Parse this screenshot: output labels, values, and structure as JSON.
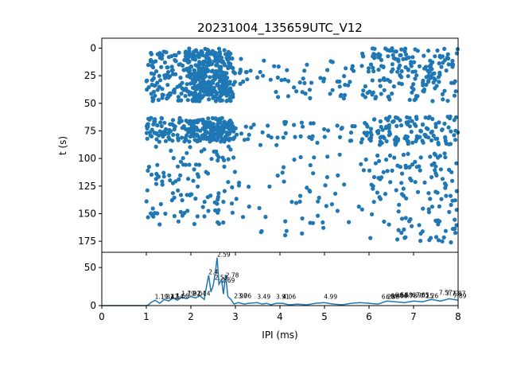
{
  "chart_data": [
    {
      "type": "scatter",
      "title": "20231004_135659UTC_V12",
      "xlabel": "",
      "ylabel": "t (s)",
      "xlim": [
        0,
        8
      ],
      "ylim": [
        185,
        -9
      ],
      "y_inverted": true,
      "yticks": [
        0,
        25,
        50,
        75,
        100,
        125,
        150,
        175
      ],
      "xticks": [
        0,
        1,
        2,
        3,
        4,
        5,
        6,
        7,
        8
      ],
      "x_tick_labels_shown": false,
      "color": "#1f77b4",
      "note_density": "dense points; bands near t 0-45 and 65-85 across x 1-8, sparser elsewhere",
      "clusters": [
        {
          "x_range": [
            1.0,
            3.0
          ],
          "t_range": [
            3,
            48
          ],
          "count": 260
        },
        {
          "x_range": [
            1.9,
            2.9
          ],
          "t_range": [
            0,
            48
          ],
          "count": 180
        },
        {
          "x_range": [
            3.0,
            5.7
          ],
          "t_range": [
            8,
            48
          ],
          "count": 60
        },
        {
          "x_range": [
            5.8,
            8.0
          ],
          "t_range": [
            0,
            48
          ],
          "count": 180
        },
        {
          "x_range": [
            1.0,
            3.0
          ],
          "t_range": [
            63,
            85
          ],
          "count": 150
        },
        {
          "x_range": [
            2.0,
            2.9
          ],
          "t_range": [
            65,
            85
          ],
          "count": 100
        },
        {
          "x_range": [
            3.0,
            5.7
          ],
          "t_range": [
            65,
            88
          ],
          "count": 45
        },
        {
          "x_range": [
            5.8,
            8.0
          ],
          "t_range": [
            62,
            88
          ],
          "count": 130
        },
        {
          "x_range": [
            1.0,
            3.0
          ],
          "t_range": [
            88,
            160
          ],
          "count": 110
        },
        {
          "x_range": [
            3.0,
            6.0
          ],
          "t_range": [
            95,
            170
          ],
          "count": 55
        },
        {
          "x_range": [
            6.0,
            8.0
          ],
          "t_range": [
            95,
            178
          ],
          "count": 130
        }
      ]
    },
    {
      "type": "line",
      "xlabel": "IPI (ms)",
      "ylabel": "",
      "xlim": [
        0,
        8
      ],
      "ylim": [
        0,
        70
      ],
      "xticks": [
        0,
        1,
        2,
        3,
        4,
        5,
        6,
        7,
        8
      ],
      "xtick_labels": [
        "0",
        "1",
        "2",
        "3",
        "4",
        "5",
        "6",
        "7",
        "8"
      ],
      "yticks": [
        0,
        50
      ],
      "ytick_labels": [
        "0",
        "50"
      ],
      "color": "#1f77b4",
      "x": [
        0,
        0.5,
        1.0,
        1.05,
        1.1,
        1.2,
        1.3,
        1.4,
        1.5,
        1.6,
        1.7,
        1.8,
        1.9,
        2.0,
        2.1,
        2.2,
        2.3,
        2.35,
        2.4,
        2.45,
        2.5,
        2.55,
        2.59,
        2.63,
        2.69,
        2.73,
        2.78,
        2.83,
        2.9,
        2.97,
        3.06,
        3.2,
        3.3,
        3.49,
        3.6,
        3.7,
        3.8,
        3.91,
        4.06,
        4.2,
        4.4,
        4.6,
        4.8,
        4.99,
        5.2,
        5.4,
        5.6,
        5.8,
        6.0,
        6.2,
        6.4,
        6.6,
        6.8,
        7.0,
        7.2,
        7.4,
        7.6,
        7.8,
        8.0
      ],
      "y": [
        0,
        0,
        0,
        1,
        4,
        7,
        3,
        8,
        6,
        10,
        7,
        11,
        9,
        12,
        10,
        13,
        8,
        25,
        40,
        18,
        26,
        44,
        63,
        28,
        34,
        15,
        40,
        12,
        8,
        2,
        4,
        2,
        3,
        4,
        2,
        3,
        1,
        3,
        3,
        1,
        2,
        1,
        3,
        4,
        2,
        1,
        3,
        4,
        3,
        2,
        6,
        5,
        4,
        6,
        5,
        8,
        6,
        9,
        7
      ],
      "peak_labels": [
        {
          "x": 1.19,
          "y": 8,
          "text": "1.19"
        },
        {
          "x": 1.32,
          "y": 8,
          "text": "1.32"
        },
        {
          "x": 1.42,
          "y": 8,
          "text": "1.42"
        },
        {
          "x": 1.54,
          "y": 8,
          "text": "1.54"
        },
        {
          "x": 1.66,
          "y": 9,
          "text": "1.66"
        },
        {
          "x": 1.79,
          "y": 12,
          "text": "1.79"
        },
        {
          "x": 1.92,
          "y": 12,
          "text": "1.92"
        },
        {
          "x": 2.04,
          "y": 12,
          "text": "2.04"
        },
        {
          "x": 2.14,
          "y": 12,
          "text": "2.14"
        },
        {
          "x": 2.4,
          "y": 40,
          "text": "2.4"
        },
        {
          "x": 2.59,
          "y": 63,
          "text": "2.59"
        },
        {
          "x": 2.53,
          "y": 33,
          "text": "2.53"
        },
        {
          "x": 2.69,
          "y": 29,
          "text": "2.69"
        },
        {
          "x": 2.78,
          "y": 36,
          "text": "2.78"
        },
        {
          "x": 2.97,
          "y": 9,
          "text": "2.97"
        },
        {
          "x": 3.06,
          "y": 9,
          "text": "3.06"
        },
        {
          "x": 3.49,
          "y": 8,
          "text": "3.49"
        },
        {
          "x": 3.91,
          "y": 8,
          "text": "3.91"
        },
        {
          "x": 4.06,
          "y": 8,
          "text": "4.06"
        },
        {
          "x": 4.99,
          "y": 8,
          "text": "4.99"
        },
        {
          "x": 6.28,
          "y": 8,
          "text": "6.28"
        },
        {
          "x": 6.38,
          "y": 8,
          "text": "6.38"
        },
        {
          "x": 6.48,
          "y": 9,
          "text": "6.48"
        },
        {
          "x": 6.58,
          "y": 10,
          "text": "6.58"
        },
        {
          "x": 6.68,
          "y": 10,
          "text": "6.68"
        },
        {
          "x": 6.78,
          "y": 9,
          "text": "6.78"
        },
        {
          "x": 6.96,
          "y": 10,
          "text": "6.96"
        },
        {
          "x": 7.05,
          "y": 10,
          "text": "7.05"
        },
        {
          "x": 7.15,
          "y": 9,
          "text": "7.15"
        },
        {
          "x": 7.26,
          "y": 9,
          "text": "7.26"
        },
        {
          "x": 7.57,
          "y": 13,
          "text": "7.57"
        },
        {
          "x": 7.73,
          "y": 12,
          "text": "7.73"
        },
        {
          "x": 7.87,
          "y": 12,
          "text": "7.87"
        },
        {
          "x": 7.89,
          "y": 9,
          "text": "7.89"
        }
      ]
    }
  ]
}
